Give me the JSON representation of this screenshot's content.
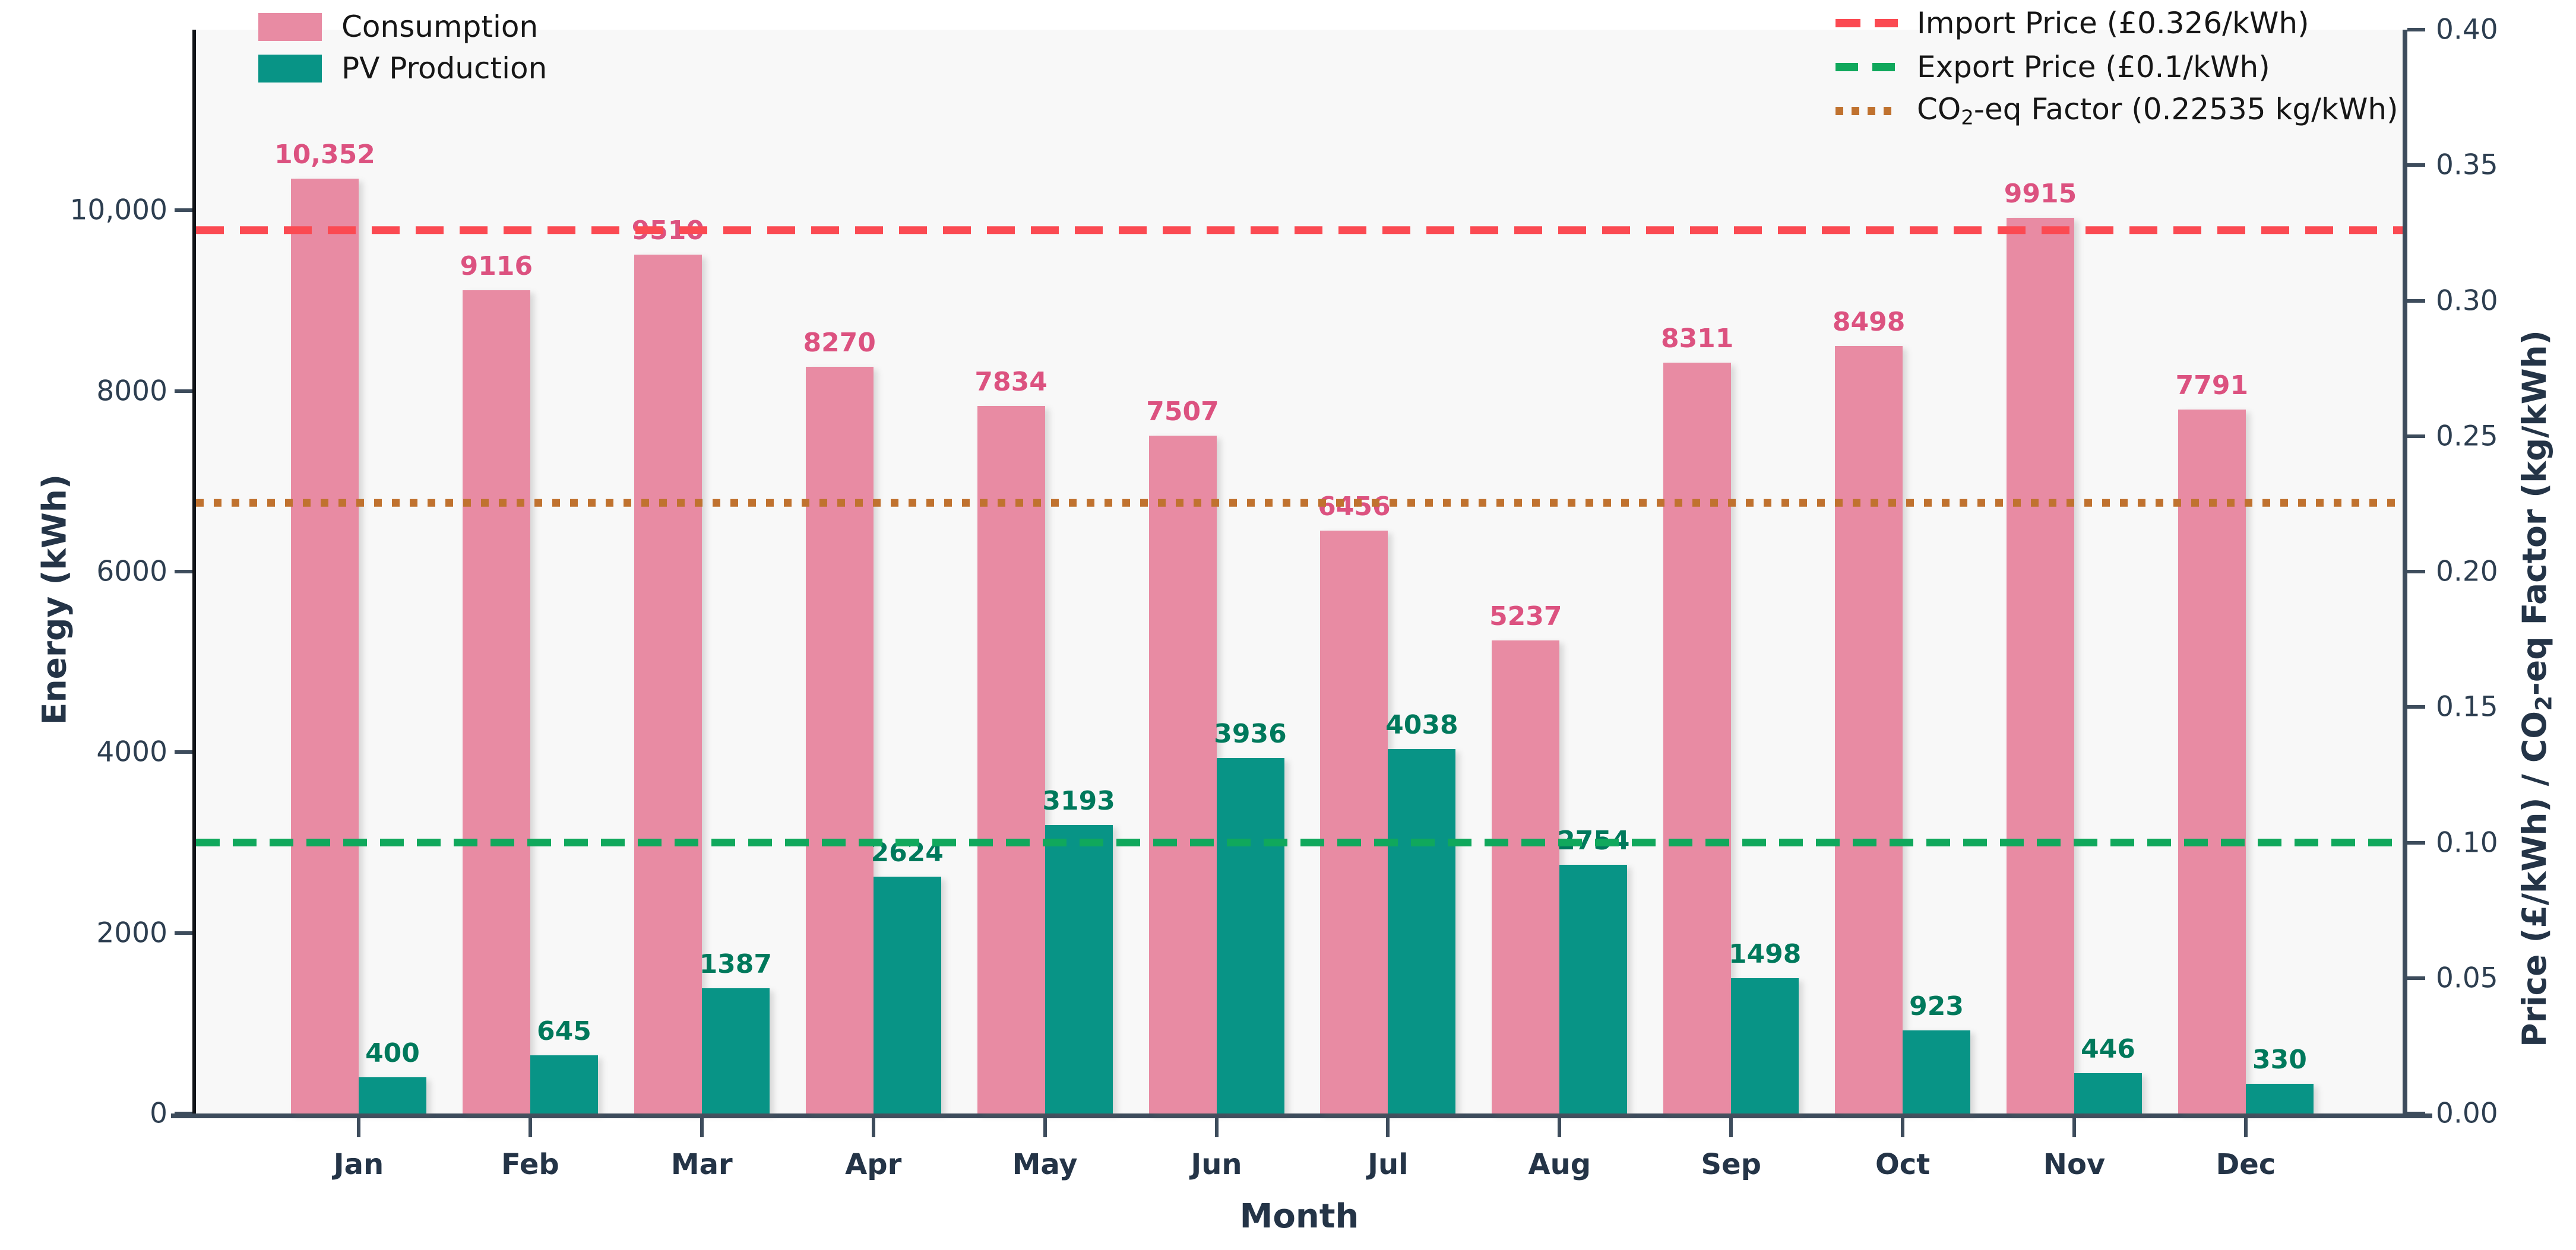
{
  "figure": {
    "bg": "#ffffff",
    "plot_bg": "#f8f8f8",
    "spine_color": "#3d4c5c",
    "text_color": "#243447"
  },
  "chart_data": {
    "type": "bar",
    "categories": [
      "Jan",
      "Feb",
      "Mar",
      "Apr",
      "May",
      "Jun",
      "Jul",
      "Aug",
      "Sep",
      "Oct",
      "Nov",
      "Dec"
    ],
    "series": [
      {
        "name": "Consumption",
        "color": "#e88ba3",
        "label_color": "#dc5280",
        "values": [
          10352,
          9116,
          9510,
          8270,
          7834,
          7507,
          6456,
          5237,
          8311,
          8498,
          9915,
          7791
        ],
        "labels": [
          "10,352",
          "9116",
          "9510",
          "8270",
          "7834",
          "7507",
          "6456",
          "5237",
          "8311",
          "8498",
          "9915",
          "7791"
        ]
      },
      {
        "name": "PV Production",
        "color": "#089486",
        "label_color": "#00795c",
        "values": [
          400,
          645,
          1387,
          2624,
          3193,
          3936,
          4038,
          2754,
          1498,
          923,
          446,
          330
        ],
        "labels": [
          "400",
          "645",
          "1387",
          "2624",
          "3193",
          "3936",
          "4038",
          "2754",
          "1498",
          "923",
          "446",
          "330"
        ]
      }
    ],
    "reference_lines": [
      {
        "name": "import-price",
        "value": 0.326,
        "color": "#fb4a52",
        "dash": "47 27",
        "legend_dash": "42 24",
        "legend_label": "Import Price (£0.326/kWh)"
      },
      {
        "name": "export-price",
        "value": 0.1,
        "color": "#10a85c",
        "dash": "40 22",
        "legend_dash": "38 24",
        "legend_label": "Export Price (£0.1/kWh)"
      },
      {
        "name": "co2-factor",
        "value": 0.22535,
        "color": "#c0722f",
        "dash": "13 17",
        "legend_dash": "13 14",
        "legend_label_prefix": "CO",
        "legend_label_sub": "2",
        "legend_label_suffix": "-eq Factor (0.22535 kg/kWh)"
      }
    ],
    "y_left": {
      "title": "Energy (kWh)",
      "max": 12000,
      "ticks": [
        {
          "v": 0,
          "t": "0"
        },
        {
          "v": 2000,
          "t": "2000"
        },
        {
          "v": 4000,
          "t": "4000"
        },
        {
          "v": 6000,
          "t": "6000"
        },
        {
          "v": 8000,
          "t": "8000"
        },
        {
          "v": 10000,
          "t": "10,000"
        }
      ]
    },
    "y_right": {
      "title_prefix": "Price (£/kWh) / CO",
      "title_sub": "2",
      "title_suffix": "-eq Factor (kg/kWh)",
      "max": 0.4,
      "ticks": [
        {
          "v": 0.0,
          "t": "0.00"
        },
        {
          "v": 0.05,
          "t": "0.05"
        },
        {
          "v": 0.1,
          "t": "0.10"
        },
        {
          "v": 0.15,
          "t": "0.15"
        },
        {
          "v": 0.2,
          "t": "0.20"
        },
        {
          "v": 0.25,
          "t": "0.25"
        },
        {
          "v": 0.3,
          "t": "0.30"
        },
        {
          "v": 0.35,
          "t": "0.35"
        },
        {
          "v": 0.4,
          "t": "0.40"
        }
      ]
    },
    "x": {
      "title": "Month"
    },
    "legend_position": {
      "series": "top-left",
      "lines": "top-right"
    },
    "grid": false
  }
}
